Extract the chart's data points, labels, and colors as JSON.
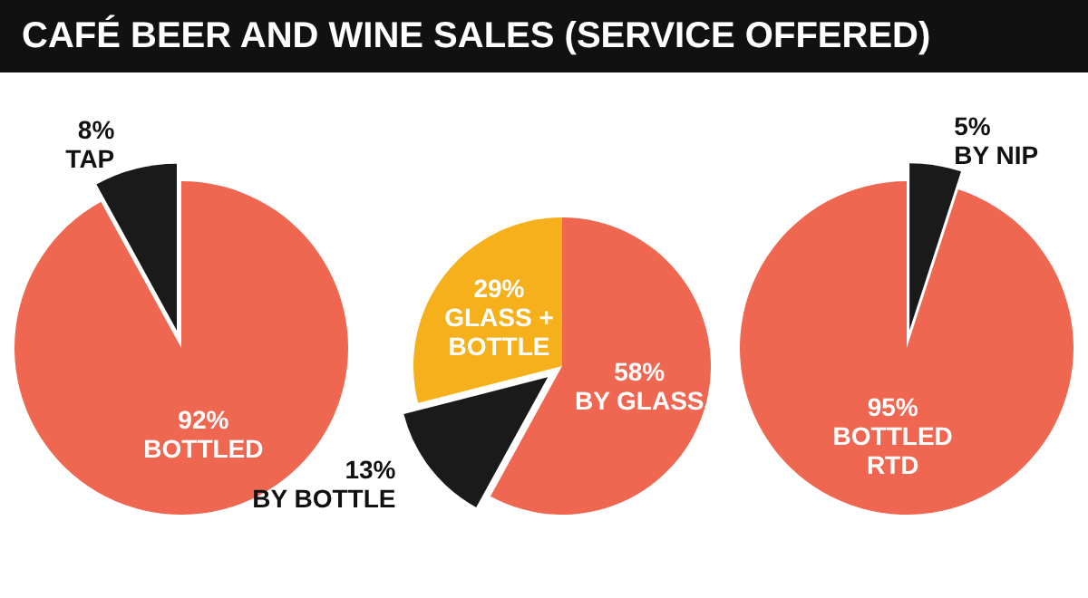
{
  "chart_data": [
    {
      "type": "pie",
      "title": "CAFÉ BEER AND WINE SALES (SERVICE OFFERED)",
      "categories": [
        "BOTTLED",
        "TAP"
      ],
      "values": [
        92,
        8
      ],
      "value_labels": [
        "92%",
        "8%"
      ],
      "colors": [
        "#ef6750",
        "#1a1a1a"
      ]
    },
    {
      "type": "pie",
      "categories": [
        "BY GLASS",
        "BY BOTTLE",
        "GLASS + BOTTLE"
      ],
      "values": [
        58,
        13,
        29
      ],
      "value_labels": [
        "58%",
        "13%",
        "29%"
      ],
      "colors": [
        "#ef6750",
        "#1a1a1a",
        "#f5b01c"
      ]
    },
    {
      "type": "pie",
      "categories": [
        "BY NIP",
        "BOTTLED RTD"
      ],
      "values": [
        5,
        95
      ],
      "value_labels": [
        "5%",
        "95%"
      ],
      "colors": [
        "#1a1a1a",
        "#ef6750"
      ]
    }
  ]
}
